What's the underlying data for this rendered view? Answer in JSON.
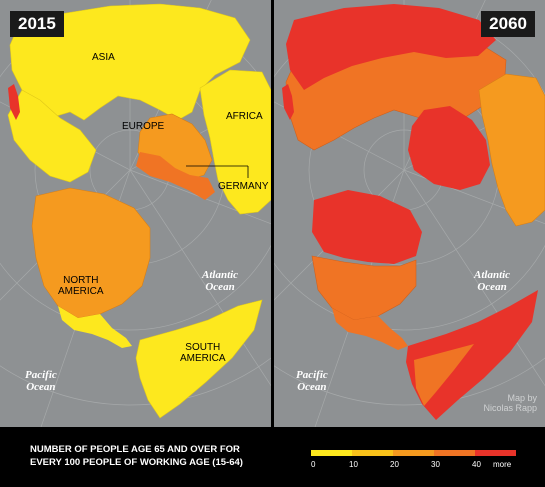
{
  "panels": [
    {
      "year": "2015",
      "labels": {
        "asia": "ASIA",
        "europe": "EUROPE",
        "africa": "AFRICA",
        "germany": "GERMANY",
        "north_america": "NORTH\nAMERICA",
        "south_america": "SOUTH\nAMERICA",
        "atlantic": "Atlantic\nOcean",
        "pacific": "Pacific\nOcean"
      },
      "region_levels": {
        "asia": "0-10",
        "europe": "20-30",
        "southern_europe": "30-40",
        "africa": "0-10",
        "north_america": "20-30",
        "south_america": "10-20",
        "japan": "40+"
      }
    },
    {
      "year": "2060",
      "labels": {
        "atlantic": "Atlantic\nOcean",
        "pacific": "Pacific\nOcean"
      },
      "credit": "Map by\nNicolas Rapp",
      "region_levels": {
        "asia": "30-40",
        "russia": "40+",
        "europe": "40+",
        "africa": "10-20",
        "north_america": "30-40",
        "canada": "40+",
        "south_america": "40+"
      }
    }
  ],
  "legend": {
    "title": "NUMBER OF PEOPLE AGE 65 AND OVER FOR\nEVERY 100 PEOPLE OF WORKING AGE (15-64)",
    "bins": [
      {
        "label": "0",
        "color": "#fde81e"
      },
      {
        "label": "10",
        "color": "#f9c21a"
      },
      {
        "label": "20",
        "color": "#f59a1f"
      },
      {
        "label": "30",
        "color": "#f07424"
      },
      {
        "label": "40",
        "color": "#e8332a"
      }
    ],
    "more_label": "more"
  },
  "colors": {
    "ocean": "#8e9193",
    "grid": "#a6a9aa",
    "lvl0": "#fde81e",
    "lvl1": "#f9c21a",
    "lvl2": "#f59a1f",
    "lvl3": "#f07424",
    "lvl4": "#e8332a"
  }
}
